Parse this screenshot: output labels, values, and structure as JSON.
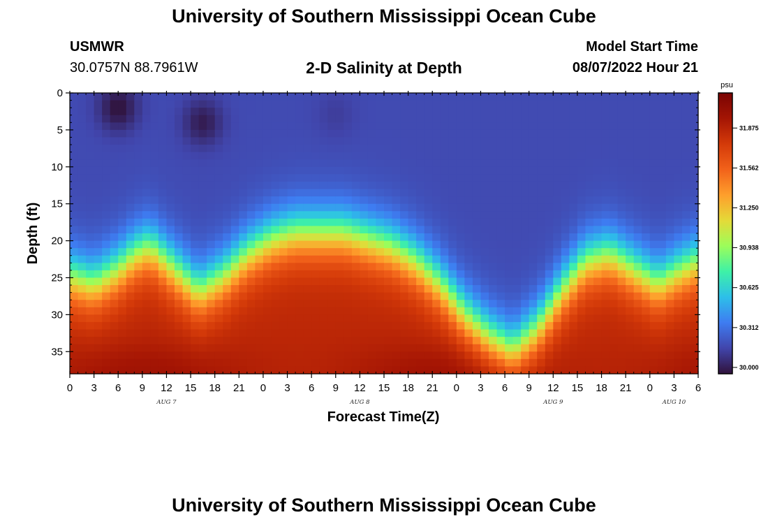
{
  "header": {
    "title": "University of Southern Mississippi Ocean Cube",
    "station": "USMWR",
    "coords": "30.0757N  88.7961W",
    "subtitle": "2-D Salinity at Depth",
    "model_label": "Model Start Time",
    "model_time": "08/07/2022 Hour 21"
  },
  "footer": {
    "title": "University of Southern Mississippi Ocean Cube"
  },
  "colors": [
    "#30123b",
    "#4145ab",
    "#3e7cf1",
    "#2dbfe9",
    "#3ef1a7",
    "#9cfd5a",
    "#e4da38",
    "#fe9f2c",
    "#f2621a",
    "#d43a09",
    "#a41504",
    "#7a0403"
  ],
  "chart_data": {
    "type": "heatmap",
    "title": "2-D Salinity at Depth",
    "xlabel": "Forecast Time(Z)",
    "ylabel": "Depth (ft)",
    "x_range_hours": [
      0,
      78
    ],
    "y_range_ft": [
      0,
      38
    ],
    "x_tick_labels": [
      "0",
      "3",
      "6",
      "9",
      "12",
      "15",
      "18",
      "21",
      "0",
      "3",
      "6",
      "9",
      "12",
      "15",
      "18",
      "21",
      "0",
      "3",
      "6",
      "9",
      "12",
      "15",
      "18",
      "21",
      "0",
      "3",
      "6"
    ],
    "y_tick_labels": [
      "0",
      "5",
      "10",
      "15",
      "20",
      "25",
      "30",
      "35"
    ],
    "y_tick_values": [
      0,
      5,
      10,
      15,
      20,
      25,
      30,
      35
    ],
    "day_labels": [
      {
        "label": "AUG 7",
        "hour": 12
      },
      {
        "label": "AUG 8",
        "hour": 36
      },
      {
        "label": "AUG 9",
        "hour": 60
      },
      {
        "label": "AUG 10",
        "hour": 75
      }
    ],
    "colorbar": {
      "unit": "psu",
      "min": 29.95,
      "max": 32.15,
      "tick_values": [
        30.0,
        30.312,
        30.625,
        30.938,
        31.25,
        31.562,
        31.875
      ],
      "tick_labels": [
        "30.000",
        "30.312",
        "30.625",
        "30.938",
        "31.250",
        "31.562",
        "31.875"
      ]
    },
    "surface_salinity_psu": 30.17,
    "bottom_salinity_psu": 31.85,
    "halocline_depth_ft": {
      "hours": [
        0,
        3,
        6,
        8,
        10,
        13,
        16,
        19,
        22,
        25,
        28,
        31,
        34,
        37,
        40,
        43,
        46,
        49,
        52,
        55,
        58,
        61,
        64,
        67,
        70,
        73,
        76,
        78
      ],
      "depth": [
        25,
        26,
        24,
        22,
        21,
        24,
        27,
        25,
        22,
        20,
        19,
        19,
        19,
        20,
        21,
        23,
        26,
        30,
        33,
        35,
        32,
        27,
        23,
        22,
        24,
        26,
        24,
        23
      ]
    },
    "fresh_cores": [
      {
        "hour": 6,
        "depth_ft": 2,
        "salinity_psu": 29.95
      },
      {
        "hour": 16.5,
        "depth_ft": 4,
        "salinity_psu": 29.99
      },
      {
        "hour": 33,
        "depth_ft": 3,
        "salinity_psu": 30.12
      },
      {
        "hour": 44,
        "depth_ft": 5,
        "salinity_psu": 30.17
      }
    ]
  }
}
